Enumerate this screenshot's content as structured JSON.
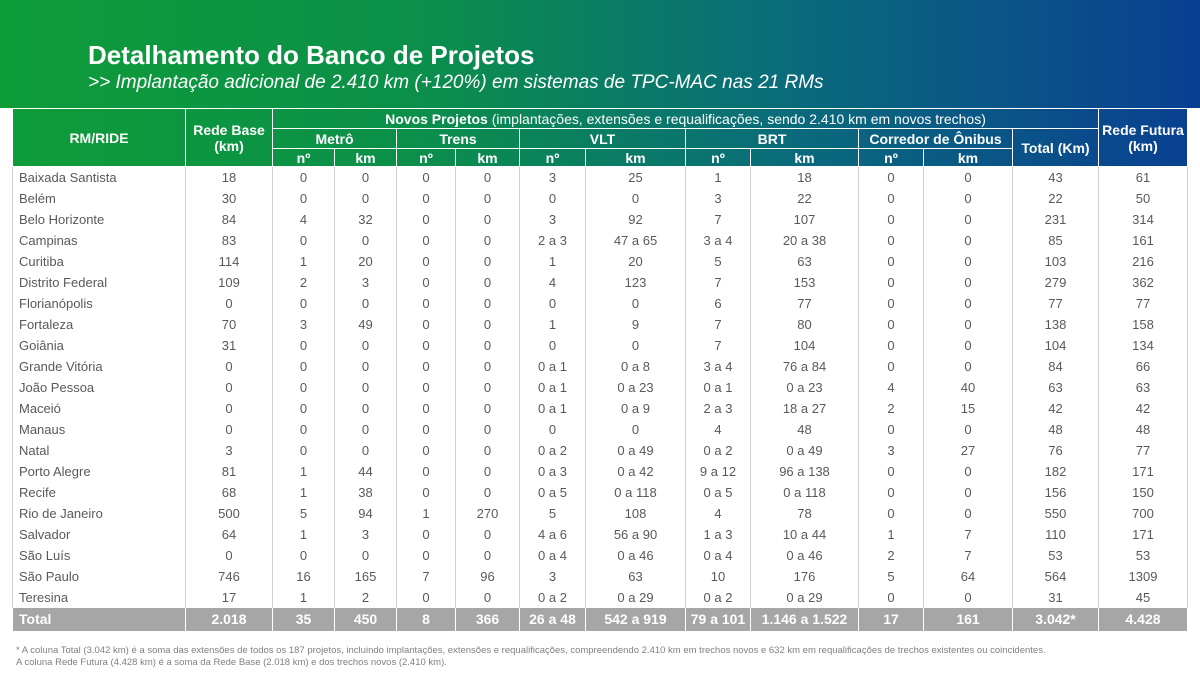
{
  "header": {
    "title": "Detalhamento do Banco de Projetos",
    "subtitle": ">> Implantação adicional de 2.410 km (+120%) em sistemas de TPC-MAC nas 21 RMs"
  },
  "table": {
    "head": {
      "rm": "RM/RIDE",
      "base": "Rede Base (km)",
      "group": "Novos Projetos",
      "group_note": " (implantações, extensões e requalificações, sendo 2.410 km em novos trechos)",
      "total": "Total (Km)",
      "future": "Rede Futura (km)",
      "modes": [
        "Metrô",
        "Trens",
        "VLT",
        "BRT",
        "Corredor de Ônibus"
      ],
      "count": "nº",
      "km": "km"
    },
    "rows": [
      [
        "Baixada Santista",
        18,
        0,
        0,
        0,
        0,
        3,
        25,
        1,
        18,
        0,
        0,
        43,
        61
      ],
      [
        "Belém",
        30,
        0,
        0,
        0,
        0,
        0,
        0,
        3,
        22,
        0,
        0,
        22,
        50
      ],
      [
        "Belo Horizonte",
        84,
        4,
        32,
        0,
        0,
        3,
        92,
        7,
        107,
        0,
        0,
        231,
        314
      ],
      [
        "Campinas",
        83,
        0,
        0,
        0,
        0,
        "2 a 3",
        "47 a 65",
        "3 a 4",
        "20 a 38",
        0,
        0,
        85,
        161
      ],
      [
        "Curitiba",
        114,
        1,
        20,
        0,
        0,
        1,
        20,
        5,
        63,
        0,
        0,
        103,
        216
      ],
      [
        "Distrito Federal",
        109,
        2,
        3,
        0,
        0,
        4,
        123,
        7,
        153,
        0,
        0,
        279,
        362
      ],
      [
        "Florianópolis",
        0,
        0,
        0,
        0,
        0,
        0,
        0,
        6,
        77,
        0,
        0,
        77,
        77
      ],
      [
        "Fortaleza",
        70,
        3,
        49,
        0,
        0,
        1,
        9,
        7,
        80,
        0,
        0,
        138,
        158
      ],
      [
        "Goiânia",
        31,
        0,
        0,
        0,
        0,
        0,
        0,
        7,
        104,
        0,
        0,
        104,
        134
      ],
      [
        "Grande Vitória",
        0,
        0,
        0,
        0,
        0,
        "0 a 1",
        "0 a 8",
        "3 a 4",
        "76 a 84",
        0,
        0,
        84,
        66
      ],
      [
        "João Pessoa",
        0,
        0,
        0,
        0,
        0,
        "0 a 1",
        "0 a 23",
        "0 a 1",
        "0 a 23",
        4,
        40,
        63,
        63
      ],
      [
        "Maceió",
        0,
        0,
        0,
        0,
        0,
        "0 a 1",
        "0 a 9",
        "2 a 3",
        "18 a 27",
        2,
        15,
        42,
        42
      ],
      [
        "Manaus",
        0,
        0,
        0,
        0,
        0,
        0,
        0,
        4,
        48,
        0,
        0,
        48,
        48
      ],
      [
        "Natal",
        3,
        0,
        0,
        0,
        0,
        "0 a 2",
        "0 a 49",
        "0 a 2",
        "0 a 49",
        3,
        27,
        76,
        77
      ],
      [
        "Porto Alegre",
        81,
        1,
        44,
        0,
        0,
        "0 a 3",
        "0 a 42",
        "9 a 12",
        "96 a 138",
        0,
        0,
        182,
        171
      ],
      [
        "Recife",
        68,
        1,
        38,
        0,
        0,
        "0 a 5",
        "0 a 118",
        "0 a 5",
        "0 a 118",
        0,
        0,
        156,
        150
      ],
      [
        "Rio de Janeiro",
        500,
        5,
        94,
        1,
        270,
        5,
        108,
        4,
        78,
        0,
        0,
        550,
        700
      ],
      [
        "Salvador",
        64,
        1,
        3,
        0,
        0,
        "4 a 6",
        "56 a 90",
        "1 a 3",
        "10 a 44",
        1,
        7,
        110,
        171
      ],
      [
        "São Luís",
        0,
        0,
        0,
        0,
        0,
        "0 a 4",
        "0 a 46",
        "0 a 4",
        "0 a 46",
        2,
        7,
        53,
        53
      ],
      [
        "São Paulo",
        746,
        16,
        165,
        7,
        96,
        3,
        63,
        10,
        176,
        5,
        64,
        564,
        1309
      ],
      [
        "Teresina",
        17,
        1,
        2,
        0,
        0,
        "0 a 2",
        "0 a 29",
        "0 a 2",
        "0 a 29",
        0,
        0,
        31,
        45
      ]
    ],
    "total": [
      "Total",
      "2.018",
      35,
      450,
      8,
      366,
      "26 a 48",
      "542 a 919",
      "79 a 101",
      "1.146 a 1.522",
      17,
      161,
      "3.042*",
      "4.428"
    ]
  },
  "footnotes": [
    "* A coluna Total (3.042 km) é a soma das extensões de todos os 187 projetos, incluindo implantações, extensões e requalificações, compreendendo 2.410 km em trechos novos e 632 km em requalificações de trechos existentes ou coincidentes.",
    "A coluna Rede Futura (4.428 km) é a soma da Rede Base (2.018 km) e dos trechos novos (2.410 km)."
  ]
}
